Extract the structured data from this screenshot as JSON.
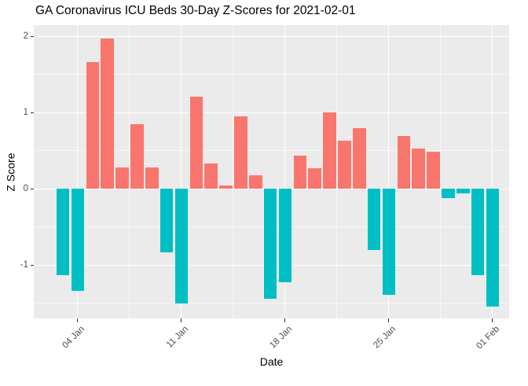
{
  "chart_data": {
    "type": "bar",
    "title": "GA Coronavirus ICU Beds 30-Day Z-Scores for 2021-02-01",
    "xlabel": "Date",
    "ylabel": "Z Score",
    "categories": [
      "03 Jan",
      "04 Jan",
      "05 Jan",
      "06 Jan",
      "07 Jan",
      "08 Jan",
      "09 Jan",
      "10 Jan",
      "11 Jan",
      "12 Jan",
      "13 Jan",
      "14 Jan",
      "15 Jan",
      "16 Jan",
      "17 Jan",
      "18 Jan",
      "19 Jan",
      "20 Jan",
      "21 Jan",
      "22 Jan",
      "23 Jan",
      "24 Jan",
      "25 Jan",
      "26 Jan",
      "27 Jan",
      "28 Jan",
      "29 Jan",
      "30 Jan",
      "31 Jan",
      "01 Feb"
    ],
    "values": [
      -1.13,
      -1.34,
      1.66,
      1.97,
      0.28,
      0.85,
      0.28,
      -0.83,
      -1.5,
      1.21,
      0.33,
      0.04,
      0.95,
      0.18,
      -1.44,
      -1.23,
      0.43,
      0.27,
      1.0,
      0.63,
      0.79,
      -0.8,
      -1.39,
      0.69,
      0.53,
      0.48,
      -0.12,
      -0.06,
      -1.13,
      -1.55
    ],
    "x_tick_labels": [
      "04 Jan",
      "11 Jan",
      "18 Jan",
      "25 Jan",
      "01 Feb"
    ],
    "y_ticks": [
      2,
      1,
      0,
      -1
    ],
    "y_tick_labels": [
      "2",
      "1",
      "0",
      "-1"
    ],
    "y_minor_ticks": [
      1.5,
      0.5,
      -0.5,
      -1.5
    ],
    "ylim": [
      -1.7,
      2.14
    ],
    "grid": "major and minor white gridlines on grey panel",
    "legend_position": "none",
    "bar_colors": {
      "positive": "#F8766D",
      "negative": "#00BFC4"
    },
    "colors": {
      "panel_background": "#EBEBEB",
      "gridline": "#FFFFFF",
      "tick_text": "#4D4D4D",
      "axis_title_text": "#000000",
      "title_text": "#000000",
      "page_background": "#FFFFFF"
    }
  }
}
